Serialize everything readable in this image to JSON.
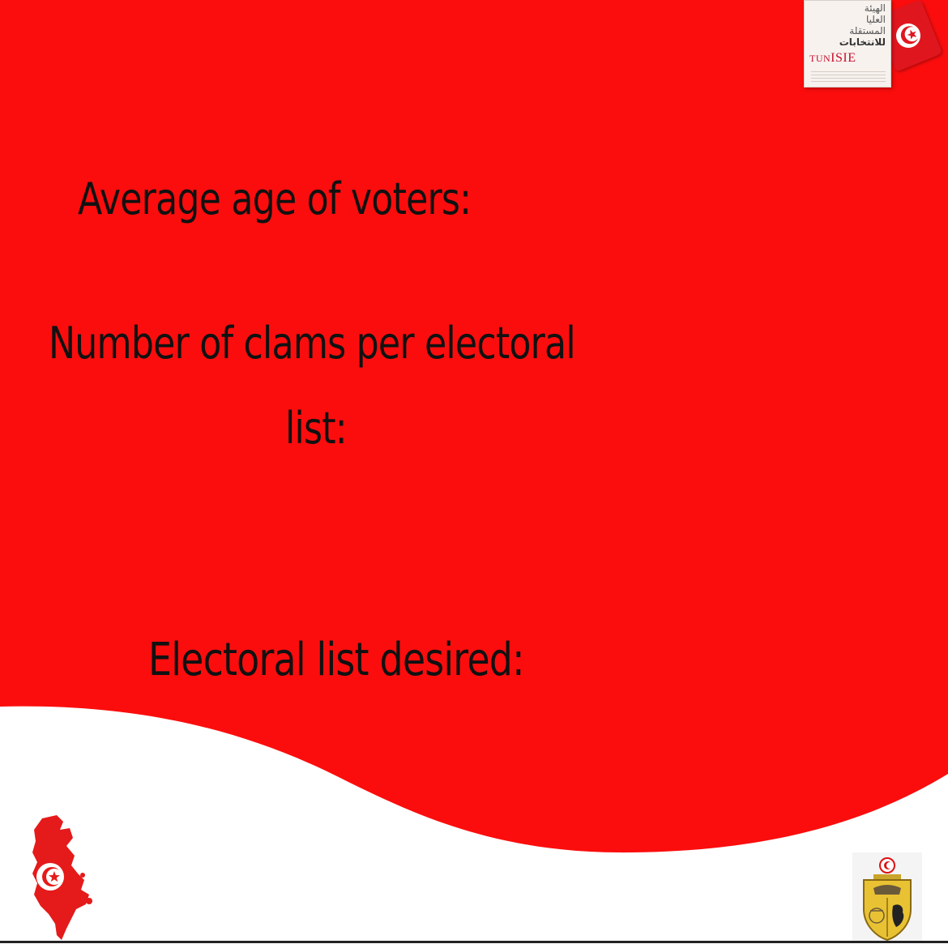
{
  "colors": {
    "background_red": "#fb0d0d",
    "wave_white": "#ffffff",
    "text": "#111111",
    "flag_red": "#e0161f"
  },
  "content": {
    "average_age_label": "Average age of voters:",
    "claims_label_line1": "Number of clams per electoral",
    "claims_label_line2": "list:",
    "desired_list_label": "Electoral list desired:"
  },
  "logo": {
    "arabic_line1": "الهيئة",
    "arabic_line2": "العليا",
    "arabic_line3": "المستقلة",
    "arabic_line4": "للانتخابات",
    "wordmark_prefix": "TUN",
    "wordmark_main": "ISIE"
  },
  "icons": {
    "logo": "isie-logo",
    "flag": "tunisia-flag-icon",
    "map": "tunisia-map-icon",
    "emblem": "coat-of-arms-icon"
  }
}
